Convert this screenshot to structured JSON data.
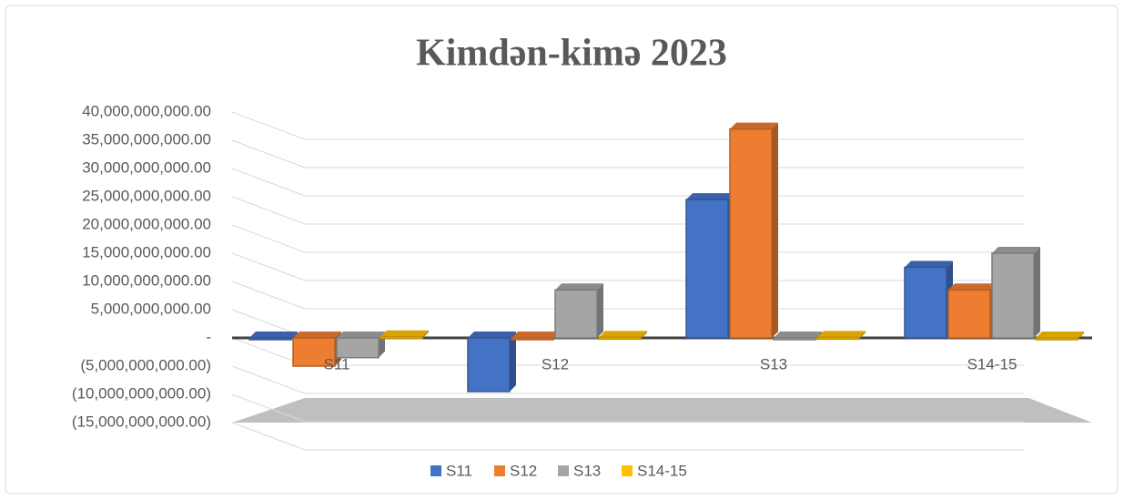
{
  "chart_data": {
    "type": "bar",
    "title": "Kimdən-kimə 2023",
    "categories": [
      "S11",
      "S12",
      "S13",
      "S14-15"
    ],
    "series": [
      {
        "name": "S11",
        "color": "#4472c4",
        "values": [
          0,
          -9500000000,
          24500000000,
          12500000000
        ]
      },
      {
        "name": "S12",
        "color": "#ed7d31",
        "values": [
          -5000000000,
          0,
          37000000000,
          8500000000
        ]
      },
      {
        "name": "S13",
        "color": "#a5a5a5",
        "values": [
          -3500000000,
          8500000000,
          0,
          15000000000
        ]
      },
      {
        "name": "S14-15",
        "color": "#ffc000",
        "values": [
          200000000,
          100000000,
          100000000,
          0
        ]
      }
    ],
    "ylim": [
      -15000000000,
      40000000000
    ],
    "yticks": [
      {
        "value": 40000000000,
        "label": "40,000,000,000.00"
      },
      {
        "value": 35000000000,
        "label": "35,000,000,000.00"
      },
      {
        "value": 30000000000,
        "label": "30,000,000,000.00"
      },
      {
        "value": 25000000000,
        "label": "25,000,000,000.00"
      },
      {
        "value": 20000000000,
        "label": "20,000,000,000.00"
      },
      {
        "value": 15000000000,
        "label": "15,000,000,000.00"
      },
      {
        "value": 10000000000,
        "label": "10,000,000,000.00"
      },
      {
        "value": 5000000000,
        "label": "5,000,000,000.00"
      },
      {
        "value": 0,
        "label": "-"
      },
      {
        "value": -5000000000,
        "label": "(5,000,000,000.00)"
      },
      {
        "value": -10000000000,
        "label": "(10,000,000,000.00)"
      },
      {
        "value": -15000000000,
        "label": "(15,000,000,000.00)"
      }
    ],
    "grid": true,
    "legend": "bottom"
  }
}
